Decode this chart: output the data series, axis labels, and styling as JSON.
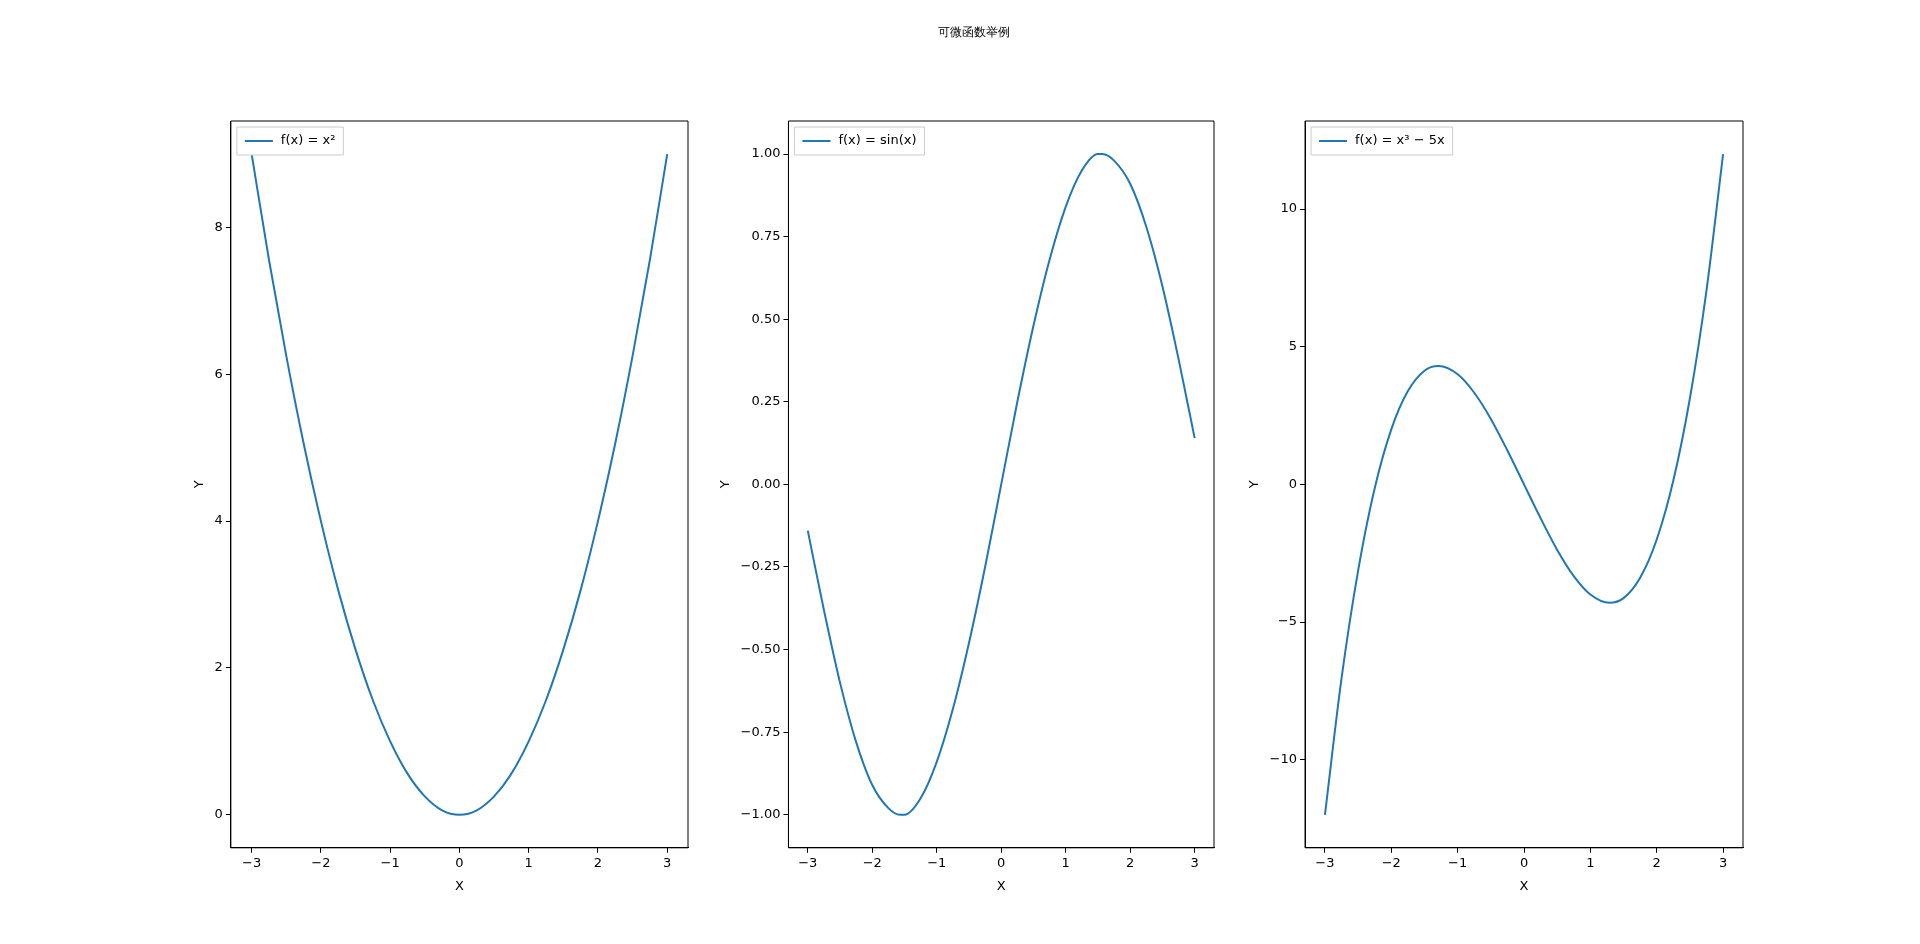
{
  "chart_data": [
    {
      "type": "line",
      "xlabel": "X",
      "ylabel": "Y",
      "legend": "top left",
      "grid": false,
      "xlim": [
        -3.3,
        3.3
      ],
      "xticks": [
        -3,
        -2,
        -1,
        0,
        1,
        2,
        3
      ],
      "ylim": [
        -0.45,
        9.45
      ],
      "yticks": [
        0,
        2,
        4,
        6,
        8
      ],
      "x": [
        -3,
        -2.75,
        -2.5,
        -2.25,
        -2,
        -1.75,
        -1.5,
        -1.25,
        -1,
        -0.75,
        -0.5,
        -0.25,
        0,
        0.25,
        0.5,
        0.75,
        1,
        1.25,
        1.5,
        1.75,
        2,
        2.25,
        2.5,
        2.75,
        3
      ],
      "series": [
        {
          "name": "f(x) = x²",
          "color": "#1f77b4",
          "values": [
            9,
            7.56,
            6.25,
            5.06,
            4,
            3.06,
            2.25,
            1.56,
            1,
            0.56,
            0.25,
            0.06,
            0,
            0.06,
            0.25,
            0.56,
            1,
            1.56,
            2.25,
            3.06,
            4,
            5.06,
            6.25,
            7.56,
            9
          ]
        }
      ]
    },
    {
      "type": "line",
      "title": "可微函数举例",
      "xlabel": "X",
      "ylabel": "Y",
      "legend": "top left",
      "grid": false,
      "xlim": [
        -3.3,
        3.3
      ],
      "xticks": [
        -3,
        -2,
        -1,
        0,
        1,
        2,
        3
      ],
      "ylim": [
        -1.1,
        1.1
      ],
      "yticks": [
        {
          "value": -1,
          "label": "−1.00"
        },
        {
          "value": -0.75,
          "label": "−0.75"
        },
        {
          "value": -0.5,
          "label": "−0.50"
        },
        {
          "value": -0.25,
          "label": "−0.25"
        },
        {
          "value": 0,
          "label": "0.00"
        },
        {
          "value": 0.25,
          "label": "0.25"
        },
        {
          "value": 0.5,
          "label": "0.50"
        },
        {
          "value": 0.75,
          "label": "0.75"
        },
        {
          "value": 1,
          "label": "1.00"
        }
      ],
      "x": [
        -3,
        -2.75,
        -2.5,
        -2.25,
        -2,
        -1.75,
        -1.57,
        -1.5,
        -1.25,
        -1,
        -0.75,
        -0.5,
        -0.25,
        0,
        0.25,
        0.5,
        0.75,
        1,
        1.25,
        1.5,
        1.57,
        1.75,
        2,
        2.25,
        2.5,
        2.75,
        3
      ],
      "series": [
        {
          "name": "f(x) = sin(x)",
          "color": "#1f77b4",
          "values": [
            -0.14,
            -0.38,
            -0.6,
            -0.78,
            -0.91,
            -0.98,
            -1,
            -1,
            -0.95,
            -0.84,
            -0.68,
            -0.48,
            -0.25,
            0,
            0.25,
            0.48,
            0.68,
            0.84,
            0.95,
            1,
            1,
            0.98,
            0.91,
            0.78,
            0.6,
            0.38,
            0.14
          ]
        }
      ]
    },
    {
      "type": "line",
      "xlabel": "X",
      "ylabel": "Y",
      "legend": "top left",
      "grid": false,
      "xlim": [
        -3.3,
        3.3
      ],
      "xticks": [
        -3,
        -2,
        -1,
        0,
        1,
        2,
        3
      ],
      "ylim": [
        -13.2,
        13.2
      ],
      "yticks": [
        {
          "value": -10,
          "label": "−10"
        },
        {
          "value": -5,
          "label": "−5"
        },
        0,
        5,
        10
      ],
      "x": [
        -3,
        -2.75,
        -2.5,
        -2.25,
        -2,
        -1.75,
        -1.5,
        -1.29,
        -1,
        -0.75,
        -0.5,
        -0.25,
        0,
        0.25,
        0.5,
        0.75,
        1,
        1.29,
        1.5,
        1.75,
        2,
        2.25,
        2.5,
        2.75,
        3
      ],
      "series": [
        {
          "name": "f(x) = x³ − 5x",
          "color": "#1f77b4",
          "values": [
            -12,
            -7.05,
            -3.13,
            -0.14,
            2,
            3.39,
            4.13,
            4.3,
            4,
            3.33,
            2.38,
            1.23,
            0,
            -1.23,
            -2.38,
            -3.33,
            -4,
            -4.3,
            -4.13,
            -3.39,
            -2,
            0.14,
            3.13,
            7.05,
            12
          ]
        }
      ]
    }
  ]
}
